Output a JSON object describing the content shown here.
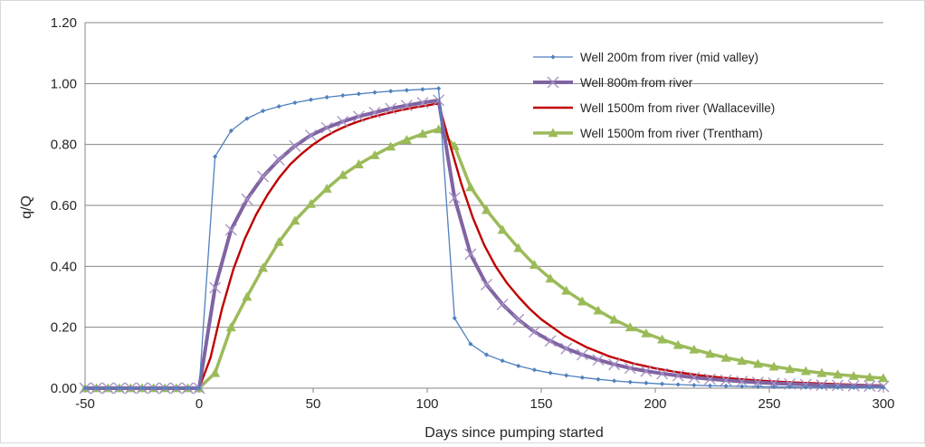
{
  "chart_data": {
    "type": "line",
    "title": "",
    "xlabel": "Days since pumping started",
    "ylabel": "q/Q",
    "xlim": [
      -50,
      300
    ],
    "ylim": [
      0,
      1.2
    ],
    "x_ticks": [
      "-50",
      "0",
      "50",
      "100",
      "150",
      "200",
      "250",
      "300"
    ],
    "x_tick_values": [
      -50,
      0,
      50,
      100,
      150,
      200,
      250,
      300
    ],
    "y_ticks": [
      "0.00",
      "0.20",
      "0.40",
      "0.60",
      "0.80",
      "1.00",
      "1.20"
    ],
    "y_tick_values": [
      0,
      0.2,
      0.4,
      0.6,
      0.8,
      1.0,
      1.2
    ],
    "grid": "horizontal",
    "legend_position": "top-right",
    "series": [
      {
        "name": "Well 200m from river (mid valley)",
        "color": "#4f81bd",
        "marker": "small-diamond",
        "points": [
          [
            -50,
            0
          ],
          [
            -45,
            0
          ],
          [
            -40,
            0
          ],
          [
            -35,
            0
          ],
          [
            -30,
            0
          ],
          [
            -25,
            0
          ],
          [
            -20,
            0
          ],
          [
            -15,
            0
          ],
          [
            -10,
            0
          ],
          [
            -5,
            0
          ],
          [
            0,
            0
          ],
          [
            7,
            0.76
          ],
          [
            14,
            0.845
          ],
          [
            21,
            0.885
          ],
          [
            28,
            0.91
          ],
          [
            35,
            0.925
          ],
          [
            42,
            0.937
          ],
          [
            49,
            0.947
          ],
          [
            56,
            0.955
          ],
          [
            63,
            0.961
          ],
          [
            70,
            0.966
          ],
          [
            77,
            0.971
          ],
          [
            84,
            0.975
          ],
          [
            91,
            0.978
          ],
          [
            98,
            0.981
          ],
          [
            105,
            0.984
          ],
          [
            112,
            0.23
          ],
          [
            119,
            0.145
          ],
          [
            126,
            0.11
          ],
          [
            133,
            0.09
          ],
          [
            140,
            0.073
          ],
          [
            147,
            0.06
          ],
          [
            154,
            0.05
          ],
          [
            161,
            0.042
          ],
          [
            168,
            0.035
          ],
          [
            175,
            0.029
          ],
          [
            182,
            0.024
          ],
          [
            189,
            0.02
          ],
          [
            196,
            0.017
          ],
          [
            203,
            0.014
          ],
          [
            210,
            0.012
          ],
          [
            217,
            0.01
          ],
          [
            224,
            0.008
          ],
          [
            231,
            0.007
          ],
          [
            238,
            0.006
          ],
          [
            245,
            0.005
          ],
          [
            252,
            0.004
          ],
          [
            259,
            0.004
          ],
          [
            266,
            0.003
          ],
          [
            273,
            0.003
          ],
          [
            280,
            0.002
          ],
          [
            287,
            0.002
          ],
          [
            294,
            0.002
          ],
          [
            300,
            0.002
          ]
        ]
      },
      {
        "name": "Well 800m from river",
        "color": "#8064a2",
        "marker": "x",
        "points": [
          [
            -50,
            0
          ],
          [
            -45,
            0
          ],
          [
            -40,
            0
          ],
          [
            -35,
            0
          ],
          [
            -30,
            0
          ],
          [
            -25,
            0
          ],
          [
            -20,
            0
          ],
          [
            -15,
            0
          ],
          [
            -10,
            0
          ],
          [
            -5,
            0
          ],
          [
            0,
            0
          ],
          [
            7,
            0.33
          ],
          [
            14,
            0.52
          ],
          [
            21,
            0.62
          ],
          [
            28,
            0.695
          ],
          [
            35,
            0.75
          ],
          [
            42,
            0.795
          ],
          [
            49,
            0.83
          ],
          [
            56,
            0.855
          ],
          [
            63,
            0.875
          ],
          [
            70,
            0.892
          ],
          [
            77,
            0.905
          ],
          [
            84,
            0.918
          ],
          [
            91,
            0.928
          ],
          [
            98,
            0.937
          ],
          [
            105,
            0.945
          ],
          [
            112,
            0.625
          ],
          [
            119,
            0.44
          ],
          [
            126,
            0.34
          ],
          [
            133,
            0.275
          ],
          [
            140,
            0.225
          ],
          [
            147,
            0.185
          ],
          [
            154,
            0.155
          ],
          [
            161,
            0.13
          ],
          [
            168,
            0.11
          ],
          [
            175,
            0.093
          ],
          [
            182,
            0.078
          ],
          [
            189,
            0.066
          ],
          [
            196,
            0.056
          ],
          [
            203,
            0.048
          ],
          [
            210,
            0.041
          ],
          [
            217,
            0.035
          ],
          [
            224,
            0.03
          ],
          [
            231,
            0.026
          ],
          [
            238,
            0.022
          ],
          [
            245,
            0.019
          ],
          [
            252,
            0.016
          ],
          [
            259,
            0.014
          ],
          [
            266,
            0.012
          ],
          [
            273,
            0.01
          ],
          [
            280,
            0.009
          ],
          [
            287,
            0.008
          ],
          [
            294,
            0.007
          ],
          [
            300,
            0.006
          ]
        ]
      },
      {
        "name": "Well 1500m from river (Wallaceville)",
        "color": "#c00000",
        "marker": "none",
        "points": [
          [
            0,
            0
          ],
          [
            5,
            0.1
          ],
          [
            10,
            0.26
          ],
          [
            15,
            0.39
          ],
          [
            20,
            0.49
          ],
          [
            25,
            0.57
          ],
          [
            30,
            0.635
          ],
          [
            35,
            0.69
          ],
          [
            40,
            0.735
          ],
          [
            45,
            0.77
          ],
          [
            50,
            0.8
          ],
          [
            55,
            0.825
          ],
          [
            60,
            0.845
          ],
          [
            65,
            0.862
          ],
          [
            70,
            0.876
          ],
          [
            75,
            0.888
          ],
          [
            80,
            0.898
          ],
          [
            85,
            0.907
          ],
          [
            90,
            0.915
          ],
          [
            95,
            0.922
          ],
          [
            100,
            0.928
          ],
          [
            105,
            0.935
          ],
          [
            110,
            0.8
          ],
          [
            115,
            0.67
          ],
          [
            120,
            0.56
          ],
          [
            125,
            0.47
          ],
          [
            130,
            0.4
          ],
          [
            135,
            0.345
          ],
          [
            140,
            0.3
          ],
          [
            145,
            0.26
          ],
          [
            150,
            0.226
          ],
          [
            160,
            0.173
          ],
          [
            170,
            0.134
          ],
          [
            180,
            0.104
          ],
          [
            190,
            0.082
          ],
          [
            200,
            0.065
          ],
          [
            210,
            0.052
          ],
          [
            220,
            0.042
          ],
          [
            230,
            0.034
          ],
          [
            240,
            0.028
          ],
          [
            250,
            0.023
          ],
          [
            260,
            0.019
          ],
          [
            270,
            0.016
          ],
          [
            280,
            0.013
          ],
          [
            290,
            0.011
          ],
          [
            300,
            0.009
          ]
        ]
      },
      {
        "name": "Well 1500m from river (Trentham)",
        "color": "#9bbb59",
        "marker": "triangle",
        "points": [
          [
            -50,
            0
          ],
          [
            -45,
            0
          ],
          [
            -40,
            0
          ],
          [
            -35,
            0
          ],
          [
            -30,
            0
          ],
          [
            -25,
            0
          ],
          [
            -20,
            0
          ],
          [
            -15,
            0
          ],
          [
            -10,
            0
          ],
          [
            -5,
            0
          ],
          [
            0,
            0
          ],
          [
            7,
            0.05
          ],
          [
            14,
            0.2
          ],
          [
            21,
            0.3
          ],
          [
            28,
            0.395
          ],
          [
            35,
            0.48
          ],
          [
            42,
            0.55
          ],
          [
            49,
            0.605
          ],
          [
            56,
            0.655
          ],
          [
            63,
            0.7
          ],
          [
            70,
            0.735
          ],
          [
            77,
            0.765
          ],
          [
            84,
            0.793
          ],
          [
            91,
            0.815
          ],
          [
            98,
            0.835
          ],
          [
            105,
            0.85
          ],
          [
            112,
            0.795
          ],
          [
            119,
            0.66
          ],
          [
            126,
            0.585
          ],
          [
            133,
            0.52
          ],
          [
            140,
            0.46
          ],
          [
            147,
            0.405
          ],
          [
            154,
            0.36
          ],
          [
            161,
            0.32
          ],
          [
            168,
            0.285
          ],
          [
            175,
            0.255
          ],
          [
            182,
            0.225
          ],
          [
            189,
            0.2
          ],
          [
            196,
            0.18
          ],
          [
            203,
            0.16
          ],
          [
            210,
            0.142
          ],
          [
            217,
            0.127
          ],
          [
            224,
            0.113
          ],
          [
            231,
            0.1
          ],
          [
            238,
            0.09
          ],
          [
            245,
            0.08
          ],
          [
            252,
            0.071
          ],
          [
            259,
            0.063
          ],
          [
            266,
            0.056
          ],
          [
            273,
            0.05
          ],
          [
            280,
            0.045
          ],
          [
            287,
            0.04
          ],
          [
            294,
            0.036
          ],
          [
            300,
            0.033
          ]
        ]
      }
    ]
  }
}
